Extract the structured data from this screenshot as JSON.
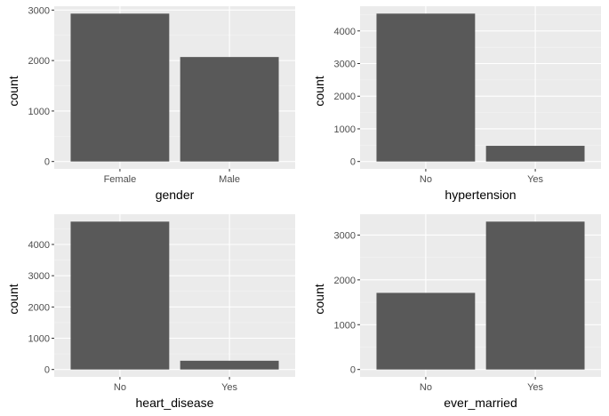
{
  "colors": {
    "panel_background": "#ebebeb",
    "grid_major": "#ffffff",
    "grid_minor": "#f4f4f4",
    "bar_fill": "#595959",
    "tick_text": "#4d4d4d",
    "tick_mark": "#333333"
  },
  "chart_data": [
    {
      "type": "bar",
      "categories": [
        "Female",
        "Male"
      ],
      "values": [
        2930,
        2070
      ],
      "xlabel": "gender",
      "ylabel": "count",
      "yticks": [
        0,
        1000,
        2000,
        3000
      ],
      "ylim": [
        -146.5,
        3076.5
      ],
      "grid": true
    },
    {
      "type": "bar",
      "categories": [
        "No",
        "Yes"
      ],
      "values": [
        4530,
        480
      ],
      "xlabel": "hypertension",
      "ylabel": "count",
      "yticks": [
        0,
        1000,
        2000,
        3000,
        4000
      ],
      "ylim": [
        -226.5,
        4756.5
      ],
      "grid": true
    },
    {
      "type": "bar",
      "categories": [
        "No",
        "Yes"
      ],
      "values": [
        4730,
        280
      ],
      "xlabel": "heart_disease",
      "ylabel": "count",
      "yticks": [
        0,
        1000,
        2000,
        3000,
        4000
      ],
      "ylim": [
        -236.5,
        4966.5
      ],
      "grid": true
    },
    {
      "type": "bar",
      "categories": [
        "No",
        "Yes"
      ],
      "values": [
        1710,
        3300
      ],
      "xlabel": "ever_married",
      "ylabel": "count",
      "yticks": [
        0,
        1000,
        2000,
        3000
      ],
      "ylim": [
        -165,
        3465
      ],
      "grid": true
    }
  ]
}
